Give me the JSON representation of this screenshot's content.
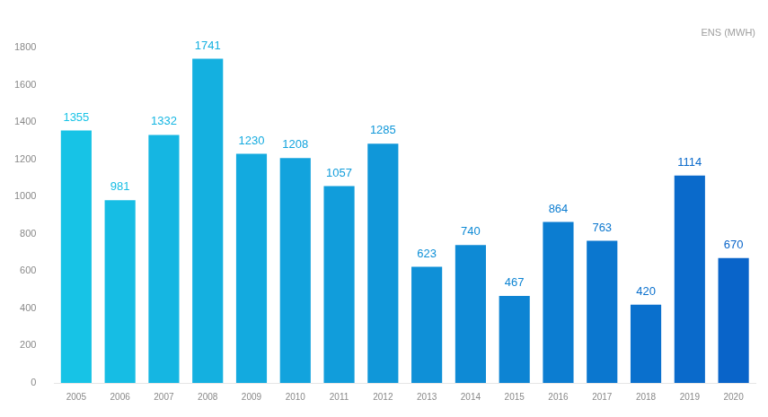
{
  "chart_data": {
    "type": "bar",
    "title": "ENS (MWH)",
    "categories": [
      "2005",
      "2006",
      "2007",
      "2008",
      "2009",
      "2010",
      "2011",
      "2012",
      "2013",
      "2014",
      "2015",
      "2016",
      "2017",
      "2018",
      "2019",
      "2020"
    ],
    "values": [
      1355,
      981,
      1332,
      1741,
      1230,
      1208,
      1057,
      1285,
      623,
      740,
      467,
      864,
      763,
      420,
      1114,
      670
    ],
    "colors": [
      "#17c3e6",
      "#16bde4",
      "#15b6e2",
      "#14b0e0",
      "#13aadf",
      "#12a3dd",
      "#119ddb",
      "#1097d9",
      "#0f90d7",
      "#0e8ad5",
      "#0d84d3",
      "#0c7dd1",
      "#0b77cf",
      "#0a70cd",
      "#0a6acb",
      "#0964c9"
    ],
    "ylim": [
      0,
      1800
    ],
    "yticks": [
      0,
      200,
      400,
      600,
      800,
      1000,
      1200,
      1400,
      1600,
      1800
    ],
    "grid": false,
    "data_labels": true
  }
}
